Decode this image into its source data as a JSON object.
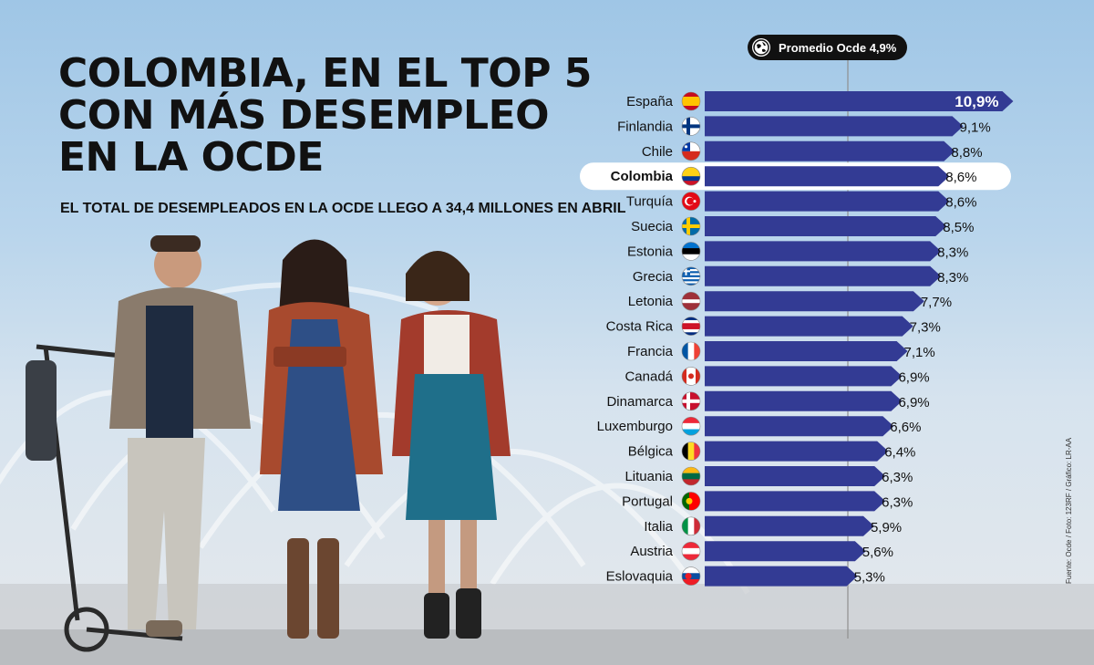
{
  "title_lines": [
    "COLOMBIA, EN EL TOP 5",
    "CON MÁS DESEMPLEO",
    "EN LA OCDE"
  ],
  "subtitle": "EL TOTAL DE DESEMPLEADOS EN LA OCDE LLEGO A 34,4 MILLONES EN ABRIL",
  "average_label": "Promedio Ocde 4,9%",
  "source": "Fuente: Ocde / Foto: 123RF / Gráfico: LR-AA",
  "colors": {
    "bar": "#333b94",
    "text": "#111111",
    "highlight_bg": "#ffffff"
  },
  "chart_data": {
    "type": "bar",
    "orientation": "horizontal",
    "unit": "%",
    "title": "COLOMBIA, EN EL TOP 5 CON MÁS DESEMPLEO EN LA OCDE",
    "reference_line": {
      "label": "Promedio Ocde 4,9%",
      "value": 4.9
    },
    "highlight": "Colombia",
    "categories": [
      "España",
      "Finlandia",
      "Chile",
      "Colombia",
      "Turquía",
      "Suecia",
      "Estonia",
      "Grecia",
      "Letonia",
      "Costa Rica",
      "Francia",
      "Canadá",
      "Dinamarca",
      "Luxemburgo",
      "Bélgica",
      "Lituania",
      "Portugal",
      "Italia",
      "Austria",
      "Eslovaquia"
    ],
    "values": [
      10.9,
      9.1,
      8.8,
      8.6,
      8.6,
      8.5,
      8.3,
      8.3,
      7.7,
      7.3,
      7.1,
      6.9,
      6.9,
      6.6,
      6.4,
      6.3,
      6.3,
      5.9,
      5.6,
      5.3
    ],
    "value_labels": [
      "10,9%",
      "9,1%",
      "8,8%",
      "8,6%",
      "8,6%",
      "8,5%",
      "8,3%",
      "8,3%",
      "7,7%",
      "7,3%",
      "7,1%",
      "6,9%",
      "6,9%",
      "6,6%",
      "6,4%",
      "6,3%",
      "6,3%",
      "5,9%",
      "5,6%",
      "5,3%"
    ],
    "flags": [
      "spain-flag-icon",
      "finland-flag-icon",
      "chile-flag-icon",
      "colombia-flag-icon",
      "turkey-flag-icon",
      "sweden-flag-icon",
      "estonia-flag-icon",
      "greece-flag-icon",
      "latvia-flag-icon",
      "costa-rica-flag-icon",
      "france-flag-icon",
      "canada-flag-icon",
      "denmark-flag-icon",
      "luxembourg-flag-icon",
      "belgium-flag-icon",
      "lithuania-flag-icon",
      "portugal-flag-icon",
      "italy-flag-icon",
      "austria-flag-icon",
      "slovakia-flag-icon"
    ]
  }
}
